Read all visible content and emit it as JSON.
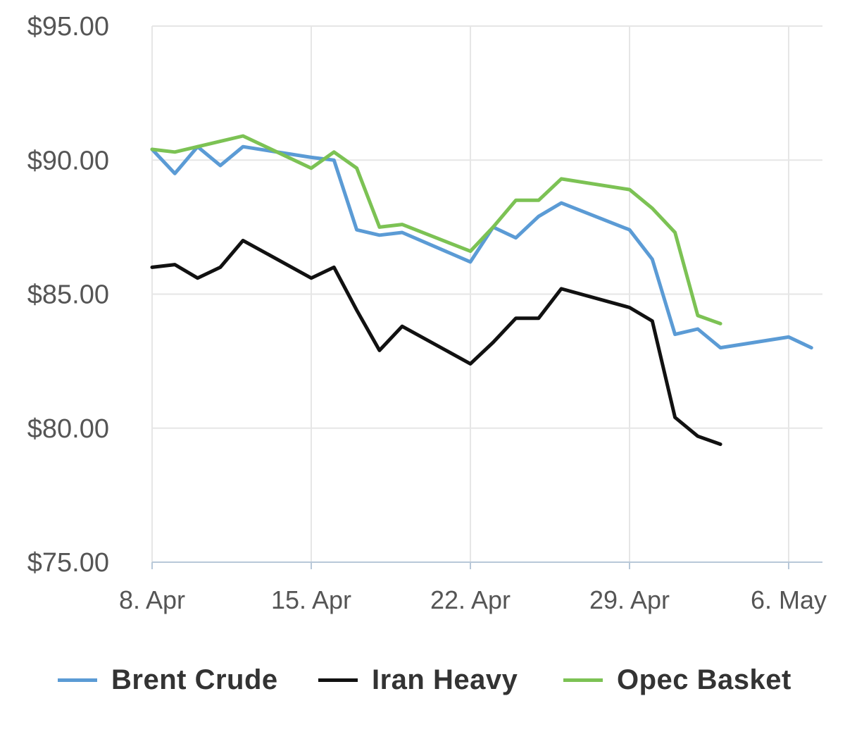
{
  "chart_data": {
    "type": "line",
    "title": "",
    "xlabel": "",
    "ylabel": "",
    "ylim": [
      75,
      95
    ],
    "y_ticks": [
      {
        "value": 95,
        "label": "$95.00"
      },
      {
        "value": 90,
        "label": "$90.00"
      },
      {
        "value": 85,
        "label": "$85.00"
      },
      {
        "value": 80,
        "label": "$80.00"
      },
      {
        "value": 75,
        "label": "$75.00"
      }
    ],
    "x_range": [
      "2024-04-08",
      "2024-05-07"
    ],
    "x_ticks": [
      {
        "date": "2024-04-08",
        "label": "8. Apr"
      },
      {
        "date": "2024-04-15",
        "label": "15. Apr"
      },
      {
        "date": "2024-04-22",
        "label": "22. Apr"
      },
      {
        "date": "2024-04-29",
        "label": "29. Apr"
      },
      {
        "date": "2024-05-06",
        "label": "6. May"
      }
    ],
    "grid": true,
    "legend_position": "bottom",
    "series": [
      {
        "name": "Brent Crude",
        "color": "#5b9bd5",
        "points": [
          [
            "2024-04-08",
            90.4
          ],
          [
            "2024-04-09",
            89.5
          ],
          [
            "2024-04-10",
            90.5
          ],
          [
            "2024-04-11",
            89.8
          ],
          [
            "2024-04-12",
            90.5
          ],
          [
            "2024-04-15",
            90.1
          ],
          [
            "2024-04-16",
            90.0
          ],
          [
            "2024-04-17",
            87.4
          ],
          [
            "2024-04-18",
            87.2
          ],
          [
            "2024-04-19",
            87.3
          ],
          [
            "2024-04-22",
            86.2
          ],
          [
            "2024-04-23",
            87.5
          ],
          [
            "2024-04-24",
            87.1
          ],
          [
            "2024-04-25",
            87.9
          ],
          [
            "2024-04-26",
            88.4
          ],
          [
            "2024-04-29",
            87.4
          ],
          [
            "2024-04-30",
            86.3
          ],
          [
            "2024-05-01",
            83.5
          ],
          [
            "2024-05-02",
            83.7
          ],
          [
            "2024-05-03",
            83.0
          ],
          [
            "2024-05-06",
            83.4
          ],
          [
            "2024-05-07",
            83.0
          ]
        ]
      },
      {
        "name": "Iran Heavy",
        "color": "#111111",
        "points": [
          [
            "2024-04-08",
            86.0
          ],
          [
            "2024-04-09",
            86.1
          ],
          [
            "2024-04-10",
            85.6
          ],
          [
            "2024-04-11",
            86.0
          ],
          [
            "2024-04-12",
            87.0
          ],
          [
            "2024-04-15",
            85.6
          ],
          [
            "2024-04-16",
            86.0
          ],
          [
            "2024-04-17",
            84.4
          ],
          [
            "2024-04-18",
            82.9
          ],
          [
            "2024-04-19",
            83.8
          ],
          [
            "2024-04-22",
            82.4
          ],
          [
            "2024-04-23",
            83.2
          ],
          [
            "2024-04-24",
            84.1
          ],
          [
            "2024-04-25",
            84.1
          ],
          [
            "2024-04-26",
            85.2
          ],
          [
            "2024-04-29",
            84.5
          ],
          [
            "2024-04-30",
            84.0
          ],
          [
            "2024-05-01",
            80.4
          ],
          [
            "2024-05-02",
            79.7
          ],
          [
            "2024-05-03",
            79.4
          ]
        ]
      },
      {
        "name": "Opec Basket",
        "color": "#7cc254",
        "points": [
          [
            "2024-04-08",
            90.4
          ],
          [
            "2024-04-09",
            90.3
          ],
          [
            "2024-04-10",
            90.5
          ],
          [
            "2024-04-11",
            90.7
          ],
          [
            "2024-04-12",
            90.9
          ],
          [
            "2024-04-15",
            89.7
          ],
          [
            "2024-04-16",
            90.3
          ],
          [
            "2024-04-17",
            89.7
          ],
          [
            "2024-04-18",
            87.5
          ],
          [
            "2024-04-19",
            87.6
          ],
          [
            "2024-04-22",
            86.6
          ],
          [
            "2024-04-23",
            87.5
          ],
          [
            "2024-04-24",
            88.5
          ],
          [
            "2024-04-25",
            88.5
          ],
          [
            "2024-04-26",
            89.3
          ],
          [
            "2024-04-29",
            88.9
          ],
          [
            "2024-04-30",
            88.2
          ],
          [
            "2024-05-01",
            87.3
          ],
          [
            "2024-05-02",
            84.2
          ],
          [
            "2024-05-03",
            83.9
          ]
        ]
      }
    ]
  },
  "legend": {
    "items": [
      {
        "label": "Brent Crude",
        "color": "#5b9bd5"
      },
      {
        "label": "Iran Heavy",
        "color": "#111111"
      },
      {
        "label": "Opec Basket",
        "color": "#7cc254"
      }
    ]
  }
}
